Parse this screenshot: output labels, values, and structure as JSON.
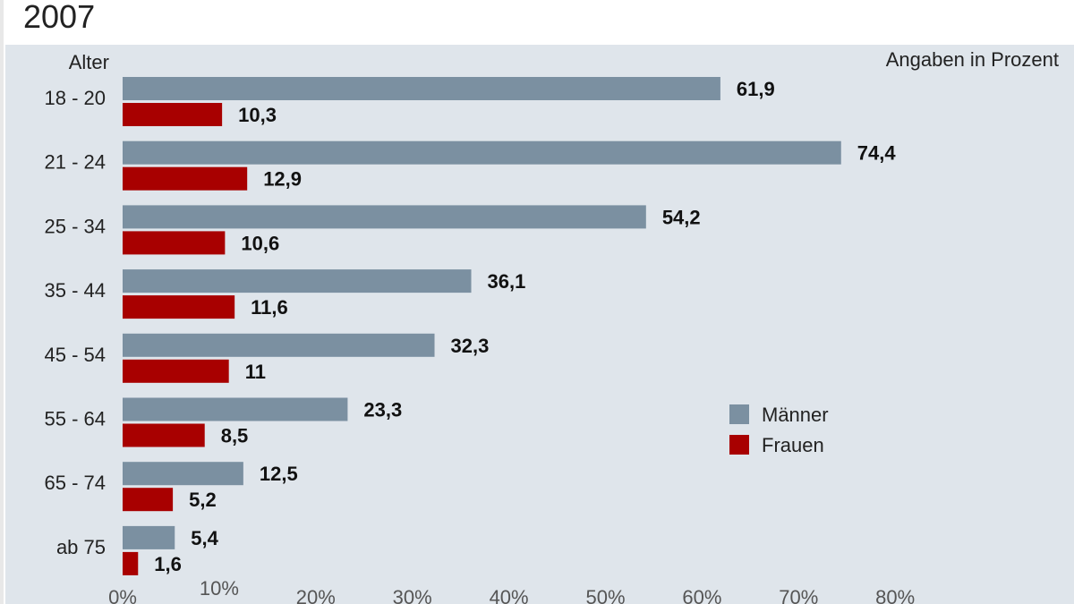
{
  "title": "2007",
  "chart_data": {
    "type": "bar",
    "orientation": "horizontal",
    "title": "2007",
    "ylabel": "Alter",
    "unit_note": "Angaben in Prozent",
    "categories": [
      "18 - 20",
      "21 - 24",
      "25 - 34",
      "35 - 44",
      "45 - 54",
      "55 - 64",
      "65 - 74",
      "ab 75"
    ],
    "series": [
      {
        "name": "Männer",
        "color": "#7b90a1",
        "values": [
          61.9,
          74.4,
          54.2,
          36.1,
          32.3,
          23.3,
          12.5,
          5.4
        ],
        "labels": [
          "61,9",
          "74,4",
          "54,2",
          "36,1",
          "32,3",
          "23,3",
          "12,5",
          "5,4"
        ]
      },
      {
        "name": "Frauen",
        "color": "#a80000",
        "values": [
          10.3,
          12.9,
          10.6,
          11.6,
          11,
          8.5,
          5.2,
          1.6
        ],
        "labels": [
          "10,3",
          "12,9",
          "10,6",
          "11,6",
          "11",
          "8,5",
          "5,2",
          "1,6"
        ]
      }
    ],
    "xlim": [
      0,
      80
    ],
    "xticks": [
      "0%",
      "10%",
      "20%",
      "30%",
      "40%",
      "50%",
      "60%",
      "70%",
      "80%"
    ],
    "legend_placement": "right-middle",
    "grid": false,
    "background": "#dfe5eb"
  }
}
